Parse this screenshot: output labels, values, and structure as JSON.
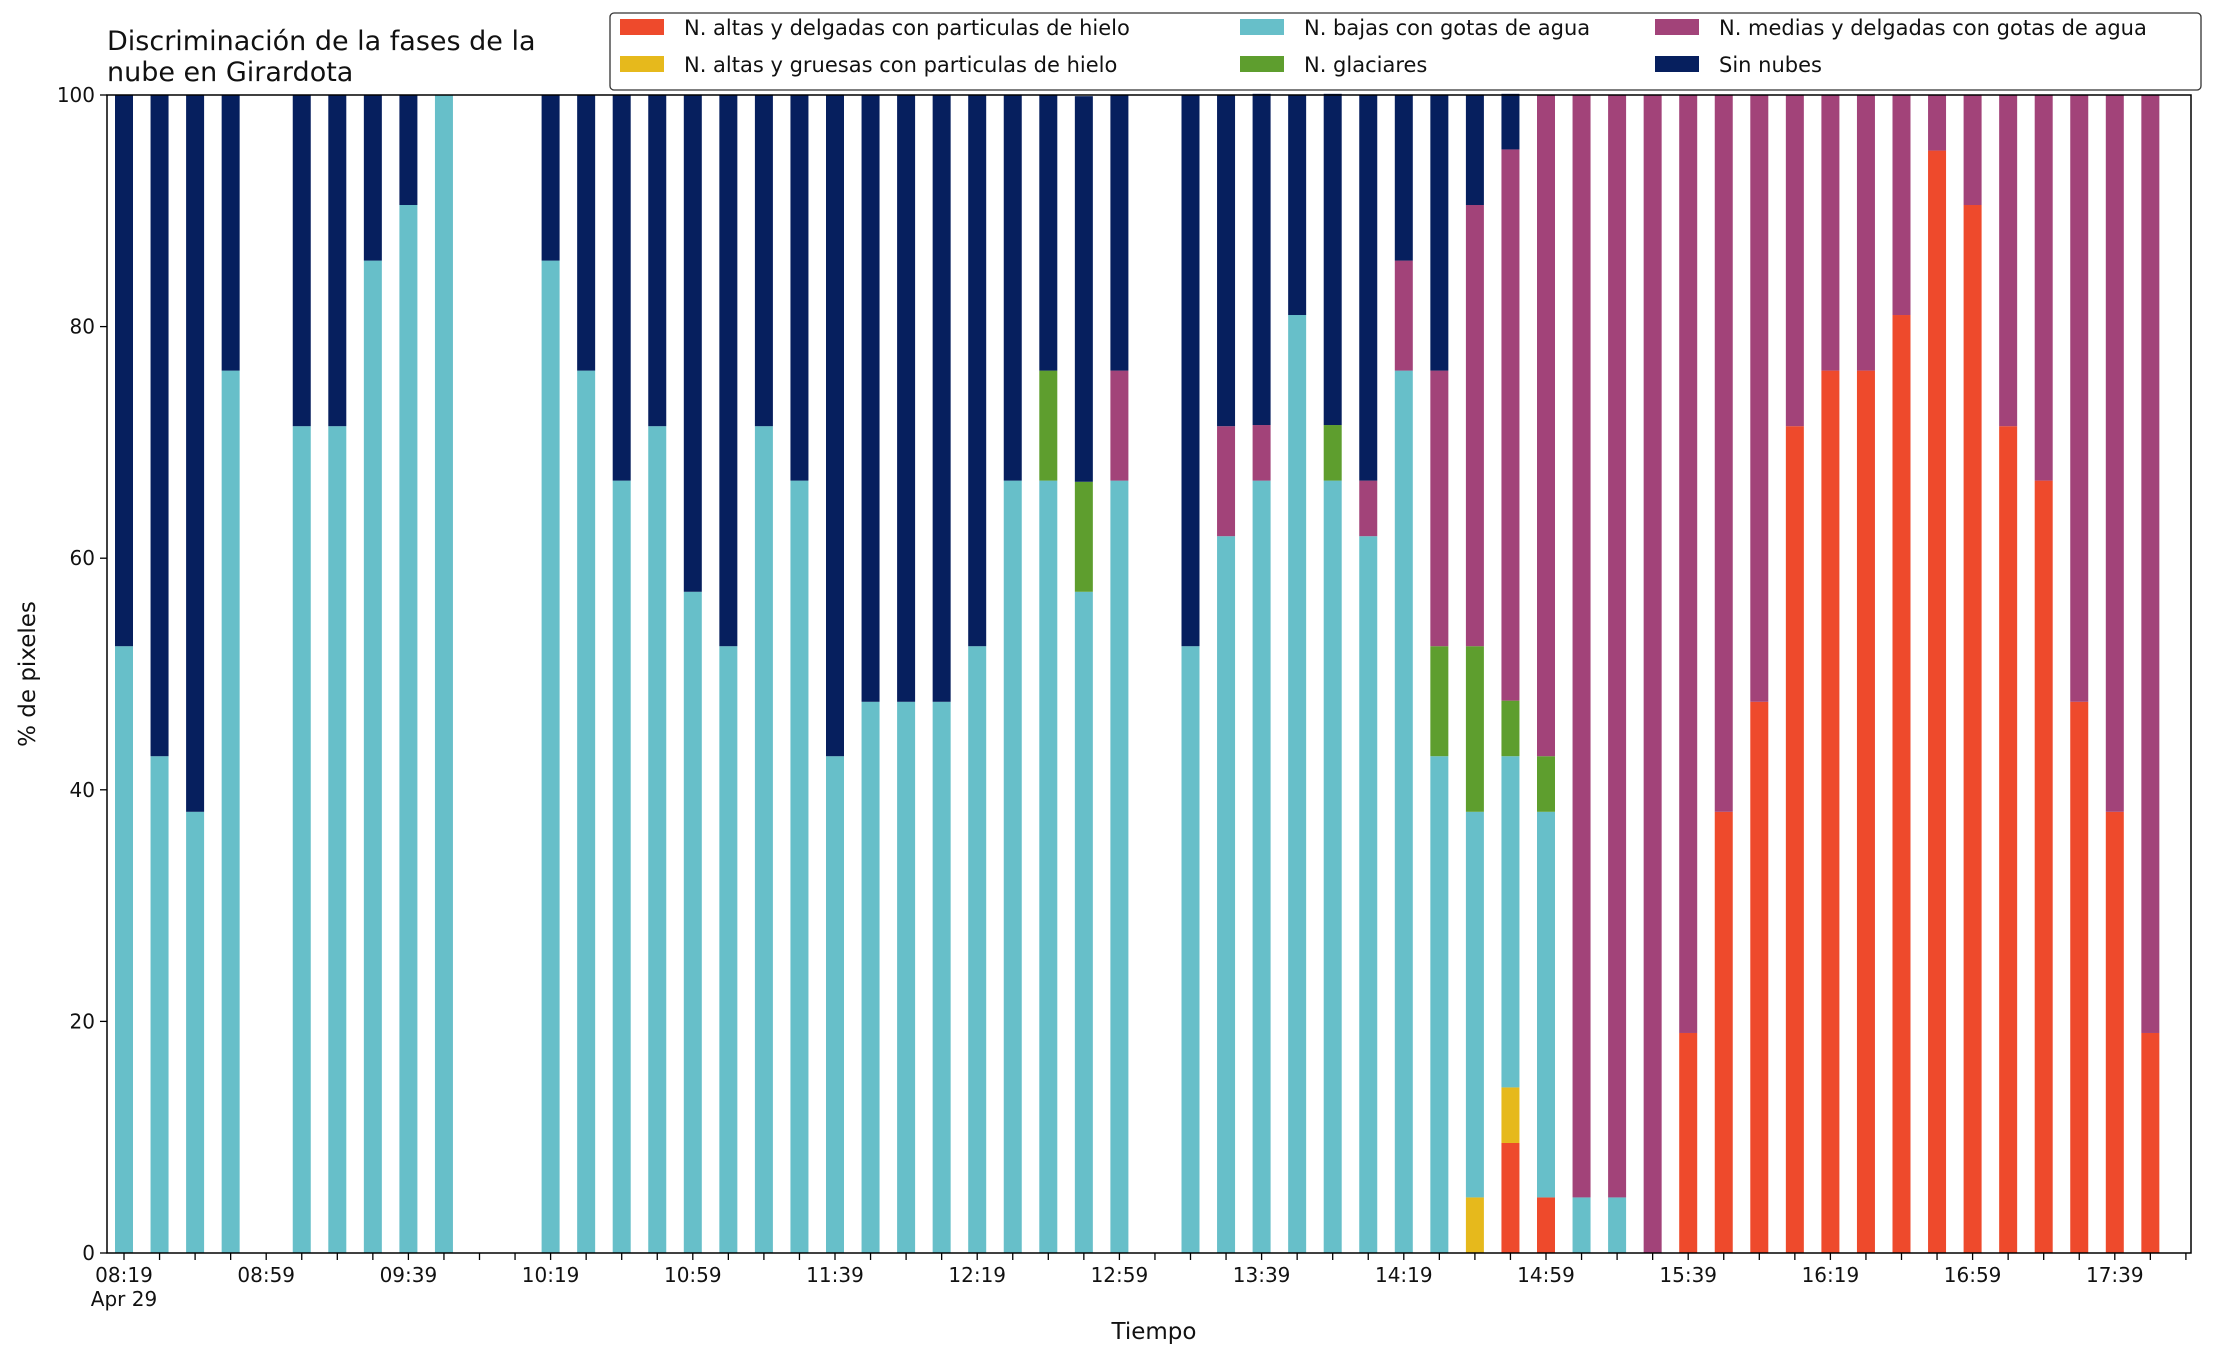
{
  "chart_data": {
    "type": "bar",
    "stacked": true,
    "title": "Discriminación de la fases de la\nnube en Girardota",
    "xlabel": "Tiempo",
    "ylabel": "% de pixeles",
    "ylim": [
      0,
      100
    ],
    "yticks": [
      0,
      20,
      40,
      60,
      80,
      100
    ],
    "x_start": "08:19",
    "x_step_minutes": 10,
    "x_tick_labels": [
      "08:19\nApr 29",
      "08:59",
      "09:39",
      "10:19",
      "10:59",
      "11:39",
      "12:19",
      "12:59",
      "13:39",
      "14:19",
      "14:59",
      "15:39",
      "16:19",
      "16:59",
      "17:39"
    ],
    "x": [
      "08:19",
      "08:29",
      "08:39",
      "08:49",
      "08:59",
      "09:09",
      "09:19",
      "09:29",
      "09:39",
      "09:49",
      "09:59",
      "10:09",
      "10:19",
      "10:29",
      "10:39",
      "10:49",
      "10:59",
      "11:09",
      "11:19",
      "11:29",
      "11:39",
      "11:49",
      "11:59",
      "12:09",
      "12:19",
      "12:29",
      "12:39",
      "12:49",
      "12:59",
      "13:09",
      "13:19",
      "13:29",
      "13:39",
      "13:49",
      "13:59",
      "14:09",
      "14:19",
      "14:29",
      "14:39",
      "14:49",
      "14:59",
      "15:09",
      "15:19",
      "15:29",
      "15:39",
      "15:49",
      "15:59",
      "16:09",
      "16:19",
      "16:29",
      "16:39",
      "16:49",
      "16:59",
      "17:09",
      "17:19",
      "17:29",
      "17:39",
      "17:49"
    ],
    "legend_position": "top-right",
    "legend_columns": 3,
    "grid": false,
    "series": [
      {
        "name": "N. altas y delgadas con particulas de hielo",
        "color": "#ee4a2c",
        "values": [
          0,
          0,
          0,
          0,
          0,
          0,
          0,
          0,
          0,
          0,
          0,
          0,
          0,
          0,
          0,
          0,
          0,
          0,
          0,
          0,
          0,
          0,
          0,
          0,
          0,
          0,
          0,
          0,
          0,
          0,
          0,
          0,
          0,
          0,
          0,
          0,
          0,
          0,
          0,
          9.5,
          4.8,
          0,
          0,
          0,
          19,
          38.1,
          47.6,
          71.4,
          76.2,
          76.2,
          81,
          95.2,
          90.5,
          71.4,
          66.7,
          47.6,
          38.1,
          19
        ]
      },
      {
        "name": "N. altas y gruesas con particulas de hielo",
        "color": "#e6b91c",
        "values": [
          0,
          0,
          0,
          0,
          0,
          0,
          0,
          0,
          0,
          0,
          0,
          0,
          0,
          0,
          0,
          0,
          0,
          0,
          0,
          0,
          0,
          0,
          0,
          0,
          0,
          0,
          0,
          0,
          0,
          0,
          0,
          0,
          0,
          0,
          0,
          0,
          0,
          0,
          4.8,
          4.8,
          0,
          0,
          0,
          0,
          0,
          0,
          0,
          0,
          0,
          0,
          0,
          0,
          0,
          0,
          0,
          0,
          0,
          0
        ]
      },
      {
        "name": "N. bajas con gotas de agua",
        "color": "#67bfc9",
        "values": [
          52.4,
          42.9,
          38.1,
          76.2,
          0,
          71.4,
          71.4,
          85.7,
          90.5,
          100,
          0,
          0,
          85.7,
          76.2,
          66.7,
          71.4,
          57.1,
          52.4,
          71.4,
          66.7,
          42.9,
          47.6,
          47.6,
          47.6,
          52.4,
          66.7,
          66.7,
          57.1,
          66.7,
          0,
          52.4,
          61.9,
          66.7,
          81,
          66.7,
          61.9,
          76.2,
          42.9,
          33.3,
          28.6,
          33.3,
          4.8,
          4.8,
          0,
          0,
          0,
          0,
          0,
          0,
          0,
          0,
          0,
          0,
          0,
          0,
          0,
          0,
          0
        ]
      },
      {
        "name": "N. glaciares",
        "color": "#5e9e2e",
        "values": [
          0,
          0,
          0,
          0,
          0,
          0,
          0,
          0,
          0,
          0,
          0,
          0,
          0,
          0,
          0,
          0,
          0,
          0,
          0,
          0,
          0,
          0,
          0,
          0,
          0,
          0,
          9.5,
          9.5,
          0,
          0,
          0,
          0,
          0,
          0,
          4.8,
          0,
          0,
          9.5,
          14.3,
          4.8,
          4.8,
          0,
          0,
          0,
          0,
          0,
          0,
          0,
          0,
          0,
          0,
          0,
          0,
          0,
          0,
          0,
          0,
          0
        ]
      },
      {
        "name": "N. medias y delgadas con gotas de agua",
        "color": "#a24379",
        "values": [
          0,
          0,
          0,
          0,
          0,
          0,
          0,
          0,
          0,
          0,
          0,
          0,
          0,
          0,
          0,
          0,
          0,
          0,
          0,
          0,
          0,
          0,
          0,
          0,
          0,
          0,
          0,
          0,
          9.5,
          0,
          0,
          9.5,
          4.8,
          0,
          0,
          4.8,
          9.5,
          23.8,
          38.1,
          47.6,
          57.1,
          95.2,
          95.2,
          100,
          81,
          61.9,
          52.4,
          28.6,
          23.8,
          23.8,
          19,
          4.8,
          9.5,
          28.6,
          33.3,
          52.4,
          61.9,
          81
        ]
      },
      {
        "name": "Sin nubes",
        "color": "#061f5e",
        "values": [
          47.6,
          57.1,
          61.9,
          23.8,
          0,
          28.6,
          28.6,
          14.3,
          9.5,
          0,
          0,
          0,
          14.3,
          23.8,
          33.3,
          28.6,
          42.9,
          47.6,
          28.6,
          33.3,
          57.1,
          52.4,
          52.4,
          52.4,
          47.6,
          33.3,
          23.8,
          33.3,
          23.8,
          0,
          47.6,
          28.6,
          28.6,
          19,
          28.6,
          33.3,
          14.3,
          23.8,
          9.5,
          4.8,
          0,
          0,
          0,
          0,
          0,
          0,
          0,
          0,
          0,
          0,
          0,
          0,
          0,
          0,
          0,
          0,
          0,
          0
        ]
      }
    ]
  }
}
